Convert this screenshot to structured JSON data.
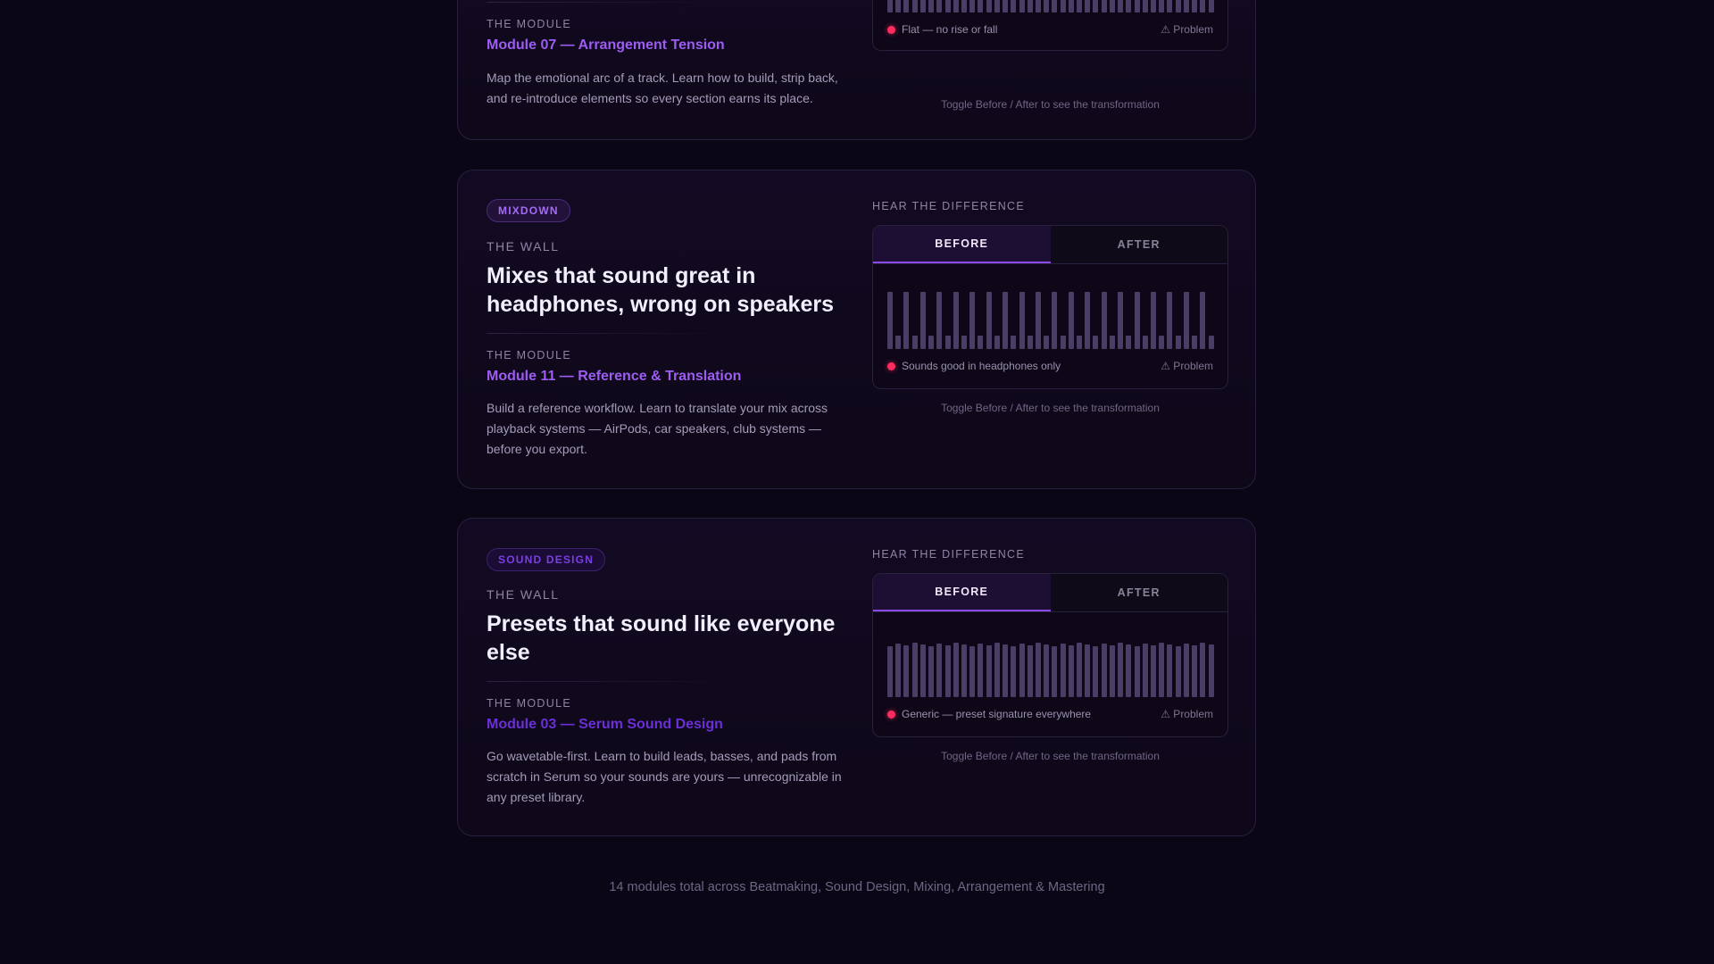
{
  "cards": [
    {
      "wall_label": "",
      "module_label": "THE MODULE",
      "module_title": "Module 07 — Arrangement Tension",
      "module_desc": "Map the emotional arc of a track. Learn how to build, strip back, and re-introduce elements so every section earns its place.",
      "player": {
        "status": "Flat — no rise or fall",
        "problem": "⚠ Problem"
      },
      "hint": "Toggle Before / After to see the transformation"
    },
    {
      "badge": "MIXDOWN",
      "wall_label": "THE WALL",
      "headline": "Mixes that sound great in headphones, wrong on speakers",
      "module_label": "THE MODULE",
      "module_title": "Module 11 — Reference & Translation",
      "module_desc": "Build a reference workflow. Learn to translate your mix across playback systems — AirPods, car speakers, club systems — before you export.",
      "section_label": "HEAR THE DIFFERENCE",
      "player": {
        "before_label": "BEFORE",
        "after_label": "AFTER",
        "status": "Sounds good in headphones only",
        "problem": "⚠ Problem"
      },
      "hint": "Toggle Before / After to see the transformation"
    },
    {
      "badge": "SOUND DESIGN",
      "wall_label": "THE WALL",
      "headline": "Presets that sound like everyone else",
      "module_label": "THE MODULE",
      "module_title": "Module 03 — Serum Sound Design",
      "module_desc": "Go wavetable-first. Learn to build leads, basses, and pads from scratch in Serum so your sounds are yours — unrecognizable in any preset library.",
      "section_label": "HEAR THE DIFFERENCE",
      "player": {
        "before_label": "BEFORE",
        "after_label": "AFTER",
        "status": "Generic — preset signature everywhere",
        "problem": "⚠ Problem"
      },
      "hint": "Toggle Before / After to see the transformation"
    }
  ],
  "footer": "14 modules total across Beatmaking, Sound Design, Mixing, Arrangement & Mastering",
  "colors": {
    "accent": "#9d5cf2",
    "problem_dot": "#ff2d5e",
    "background": "#0b0616"
  }
}
